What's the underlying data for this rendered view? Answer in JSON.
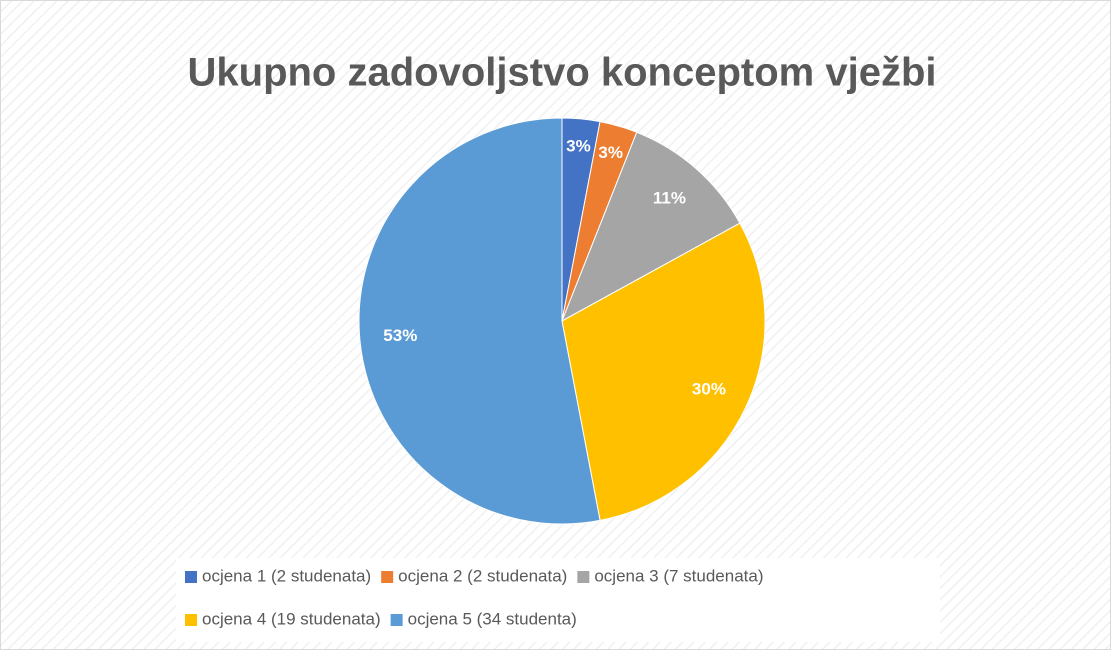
{
  "chart_data": {
    "type": "pie",
    "title": "Ukupno zadovoljstvo konceptom vježbi",
    "categories": [
      "ocjena 1 (2 studenata)",
      "ocjena 2 (2 studenata)",
      "ocjena 3 (7 studenata)",
      "ocjena 4 (19 studenata)",
      "ocjena 5 (34 studenta)"
    ],
    "values": [
      3,
      3,
      11,
      30,
      53
    ],
    "value_labels": [
      "3%",
      "3%",
      "11%",
      "30%",
      "53%"
    ],
    "colors": [
      "#4472c4",
      "#ed7d31",
      "#a5a5a5",
      "#ffc000",
      "#5b9bd5"
    ],
    "legend": "bottom"
  }
}
